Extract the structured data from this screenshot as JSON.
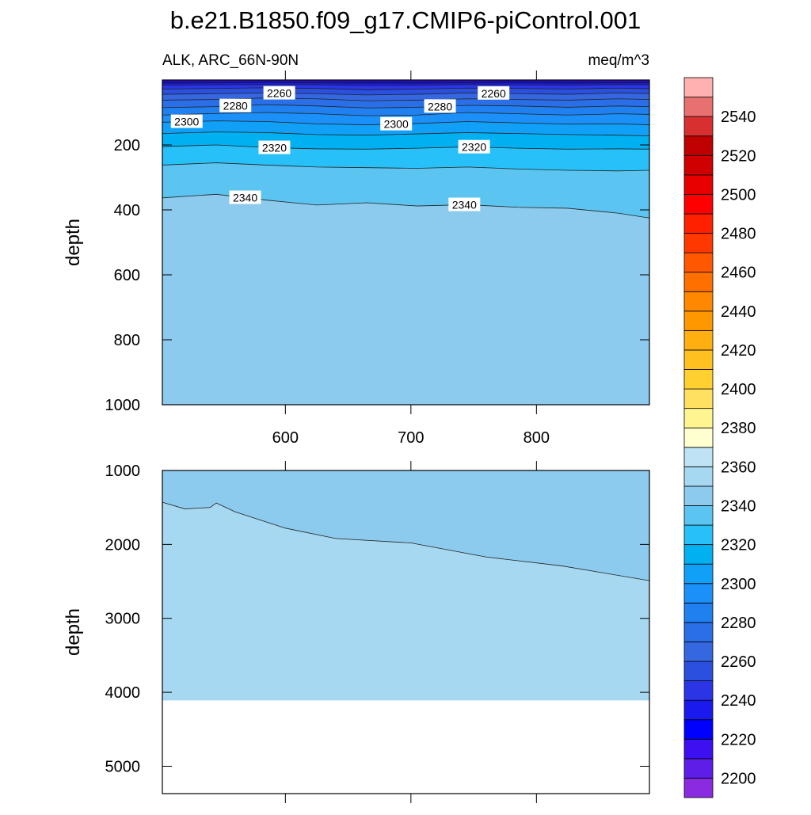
{
  "chart_data": [
    {
      "type": "contour",
      "title": "b.e21.B1850.f09_g17.CMIP6-piControl.001",
      "left_string": "ALK, ARC_66N-90N",
      "right_string": "meq/m^3",
      "y_label": "depth",
      "xlim": [
        502,
        890
      ],
      "xticks": [
        600,
        700,
        800
      ],
      "show_xtick_labels": true,
      "ylim": [
        0,
        1000
      ],
      "yticks": [
        200,
        400,
        600,
        800,
        1000
      ],
      "y_reversed": true,
      "contour_x": [
        502,
        545,
        585,
        625,
        665,
        705,
        745,
        785,
        825,
        865,
        890
      ],
      "contours": [
        {
          "level": 2220,
          "depth": [
            5,
            5,
            4,
            5,
            5,
            5,
            5,
            4,
            5,
            5,
            5
          ]
        },
        {
          "level": 2230,
          "depth": [
            10,
            9,
            8,
            9,
            10,
            10,
            9,
            9,
            10,
            9,
            9
          ]
        },
        {
          "level": 2240,
          "depth": [
            16,
            15,
            14,
            15,
            17,
            16,
            14,
            15,
            16,
            14,
            15
          ]
        },
        {
          "level": 2250,
          "depth": [
            28,
            26,
            24,
            26,
            30,
            28,
            25,
            26,
            28,
            25,
            27
          ]
        },
        {
          "level": 2260,
          "depth": [
            44,
            42,
            40,
            42,
            46,
            44,
            40,
            42,
            44,
            40,
            42
          ]
        },
        {
          "level": 2270,
          "depth": [
            62,
            60,
            55,
            58,
            64,
            62,
            58,
            60,
            62,
            58,
            60
          ]
        },
        {
          "level": 2280,
          "depth": [
            85,
            82,
            76,
            80,
            86,
            84,
            78,
            80,
            84,
            80,
            82
          ]
        },
        {
          "level": 2290,
          "depth": [
            108,
            103,
            100,
            104,
            110,
            108,
            100,
            104,
            108,
            104,
            106
          ]
        },
        {
          "level": 2300,
          "depth": [
            130,
            126,
            128,
            135,
            138,
            134,
            128,
            132,
            136,
            135,
            138
          ]
        },
        {
          "level": 2310,
          "depth": [
            165,
            160,
            162,
            168,
            170,
            166,
            162,
            165,
            168,
            170,
            172
          ]
        },
        {
          "level": 2320,
          "depth": [
            205,
            200,
            208,
            212,
            213,
            210,
            206,
            210,
            213,
            212,
            213
          ]
        },
        {
          "level": 2330,
          "depth": [
            262,
            255,
            262,
            268,
            270,
            272,
            268,
            274,
            278,
            280,
            278
          ]
        },
        {
          "level": 2340,
          "depth": [
            363,
            352,
            370,
            385,
            378,
            388,
            384,
            392,
            395,
            410,
            425
          ]
        }
      ]
    },
    {
      "type": "contour",
      "y_label": "depth",
      "xlim": [
        502,
        890
      ],
      "xticks": [
        600,
        700,
        800
      ],
      "show_xtick_labels": false,
      "ylim": [
        1000,
        5370
      ],
      "yticks": [
        1000,
        2000,
        3000,
        4000,
        5000
      ],
      "y_reversed": true,
      "valid_depth_max": 4110,
      "contour_x": [
        502,
        520,
        540,
        545,
        560,
        600,
        640,
        700,
        760,
        820,
        890
      ],
      "contours": [
        {
          "level": 2350,
          "depth": [
            1430,
            1520,
            1500,
            1440,
            1560,
            1780,
            1920,
            1980,
            2170,
            2290,
            2490
          ]
        }
      ]
    }
  ],
  "colorbar": {
    "levels": [
      2200,
      2210,
      2220,
      2230,
      2240,
      2250,
      2260,
      2270,
      2280,
      2290,
      2300,
      2310,
      2320,
      2330,
      2340,
      2350,
      2360,
      2370,
      2380,
      2390,
      2400,
      2410,
      2420,
      2430,
      2440,
      2450,
      2460,
      2470,
      2480,
      2490,
      2500,
      2510,
      2520,
      2530,
      2540,
      2550
    ],
    "colors": [
      "#8a2be2",
      "#5f1de8",
      "#3c10f0",
      "#0000ff",
      "#1a1aee",
      "#2b35e6",
      "#2b50e0",
      "#3568e0",
      "#2a6ee8",
      "#2080f0",
      "#1a90f8",
      "#10a0f8",
      "#00b0f0",
      "#28c0f8",
      "#5cc4f0",
      "#8ccbee",
      "#a6d8f1",
      "#bfe3f5",
      "#ffffd0",
      "#fff590",
      "#ffe060",
      "#ffd030",
      "#ffc020",
      "#ffb010",
      "#ff9800",
      "#ff8800",
      "#ff7000",
      "#ff5800",
      "#ff3800",
      "#ff2000",
      "#ff0000",
      "#e80000",
      "#d00000",
      "#c00000",
      "#d83030",
      "#e87070",
      "#ffb0b0"
    ],
    "labels": [
      2200,
      2220,
      2240,
      2260,
      2280,
      2300,
      2320,
      2340,
      2360,
      2380,
      2400,
      2420,
      2440,
      2460,
      2480,
      2500,
      2520,
      2540
    ]
  }
}
